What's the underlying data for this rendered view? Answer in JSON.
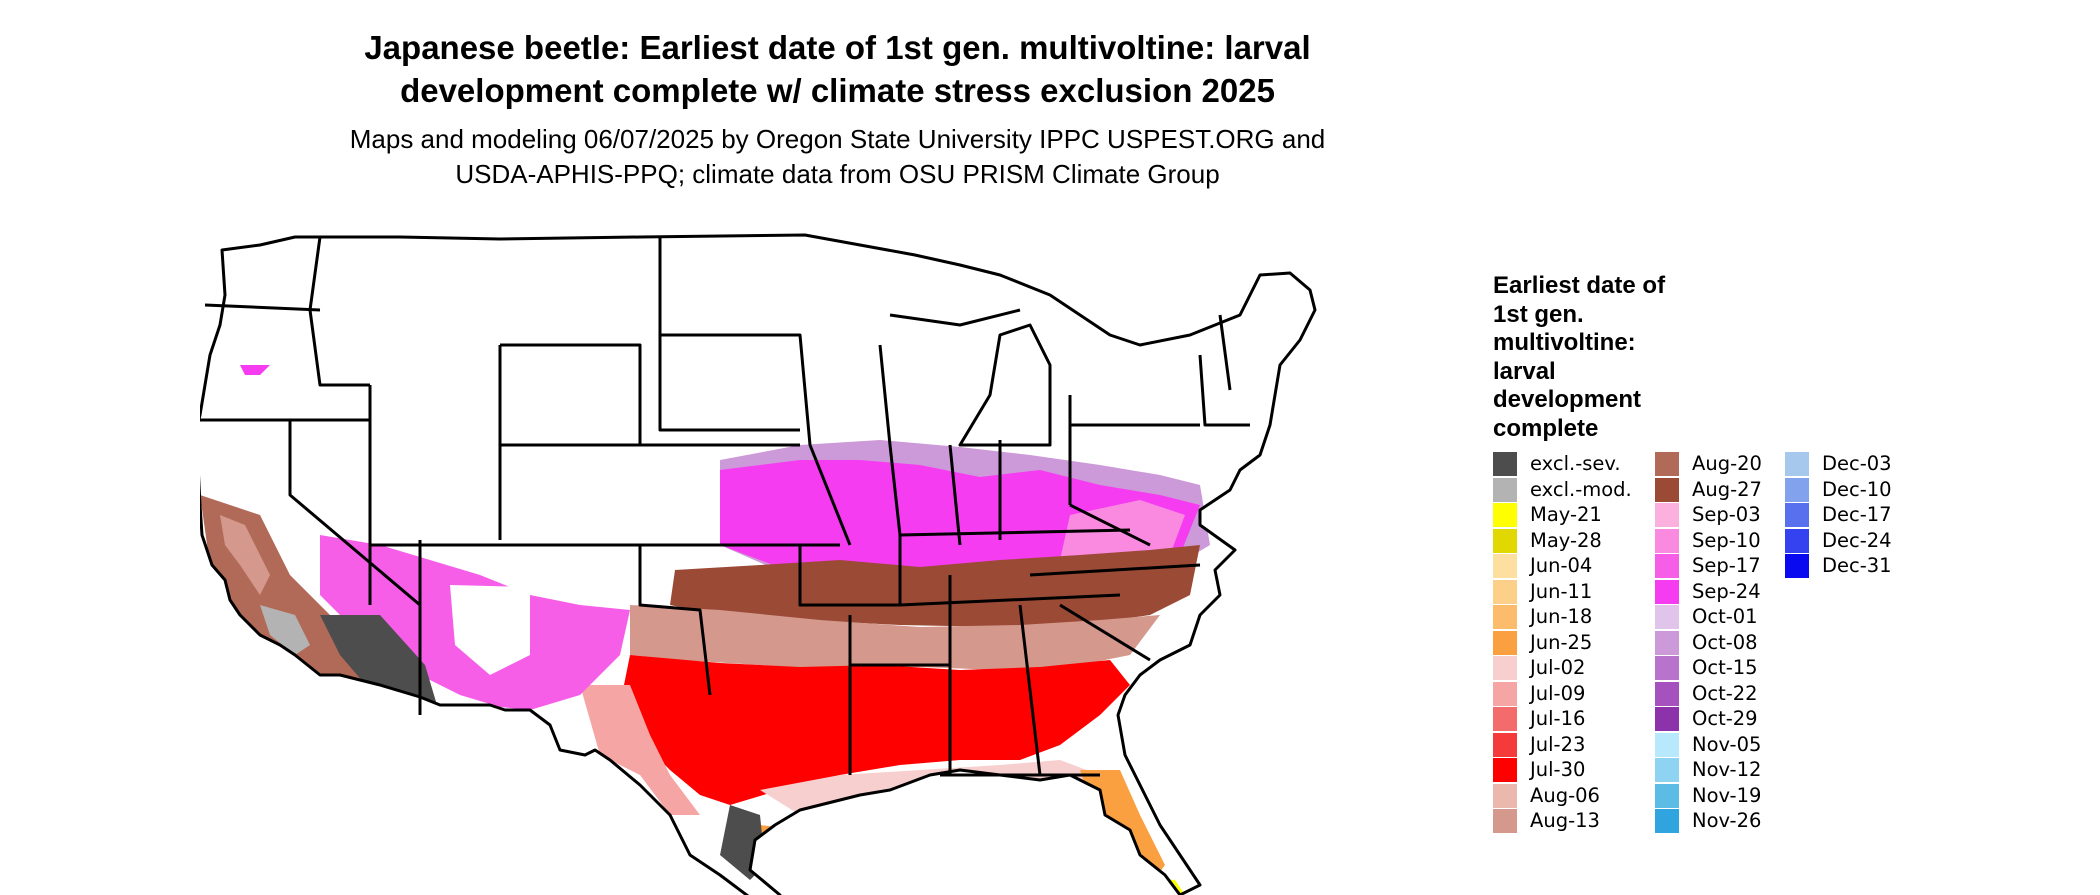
{
  "title_line1": "Japanese beetle: Earliest date of 1st gen. multivoltine: larval",
  "title_line2": "development complete w/ climate stress exclusion 2025",
  "subtitle_line1": "Maps and modeling 06/07/2025 by Oregon State University IPPC USPEST.ORG and",
  "subtitle_line2": "USDA-APHIS-PPQ; climate data from OSU PRISM Climate Group",
  "legend": {
    "title": "Earliest date of 1st gen. multivoltine: larval development complete",
    "columns": [
      [
        {
          "label": "excl.-sev.",
          "color": "#4d4d4d"
        },
        {
          "label": "excl.-mod.",
          "color": "#b3b3b3"
        },
        {
          "label": "May-21",
          "color": "#ffff00"
        },
        {
          "label": "May-28",
          "color": "#e0d800"
        },
        {
          "label": "Jun-04",
          "color": "#fde0a0"
        },
        {
          "label": "Jun-11",
          "color": "#fdd08a"
        },
        {
          "label": "Jun-18",
          "color": "#fdbc6c"
        },
        {
          "label": "Jun-25",
          "color": "#fba040"
        },
        {
          "label": "Jul-02",
          "color": "#f7cfcf"
        },
        {
          "label": "Jul-09",
          "color": "#f6a5a5"
        },
        {
          "label": "Jul-16",
          "color": "#f46b6b"
        },
        {
          "label": "Jul-23",
          "color": "#f43a3a"
        },
        {
          "label": "Jul-30",
          "color": "#ff0000"
        },
        {
          "label": "Aug-06",
          "color": "#ebb8ae"
        },
        {
          "label": "Aug-13",
          "color": "#d4988c"
        }
      ],
      [
        {
          "label": "Aug-20",
          "color": "#b26a58"
        },
        {
          "label": "Aug-27",
          "color": "#9b4a36"
        },
        {
          "label": "Sep-03",
          "color": "#fbb0de"
        },
        {
          "label": "Sep-10",
          "color": "#f98ae0"
        },
        {
          "label": "Sep-17",
          "color": "#f75ee8"
        },
        {
          "label": "Sep-24",
          "color": "#f53cf0"
        },
        {
          "label": "Oct-01",
          "color": "#e0c4ea"
        },
        {
          "label": "Oct-08",
          "color": "#cc9ad8"
        },
        {
          "label": "Oct-15",
          "color": "#b874cc"
        },
        {
          "label": "Oct-22",
          "color": "#a552bf"
        },
        {
          "label": "Oct-29",
          "color": "#8c32aa"
        },
        {
          "label": "Nov-05",
          "color": "#b8e8fb"
        },
        {
          "label": "Nov-12",
          "color": "#8ed4f2"
        },
        {
          "label": "Nov-19",
          "color": "#5cbce6"
        },
        {
          "label": "Nov-26",
          "color": "#30a4de"
        }
      ],
      [
        {
          "label": "Dec-03",
          "color": "#a6c8ec"
        },
        {
          "label": "Dec-10",
          "color": "#82a2ee"
        },
        {
          "label": "Dec-17",
          "color": "#5870ee"
        },
        {
          "label": "Dec-24",
          "color": "#3442f0"
        },
        {
          "label": "Dec-31",
          "color": "#0a0af0"
        }
      ]
    ]
  }
}
